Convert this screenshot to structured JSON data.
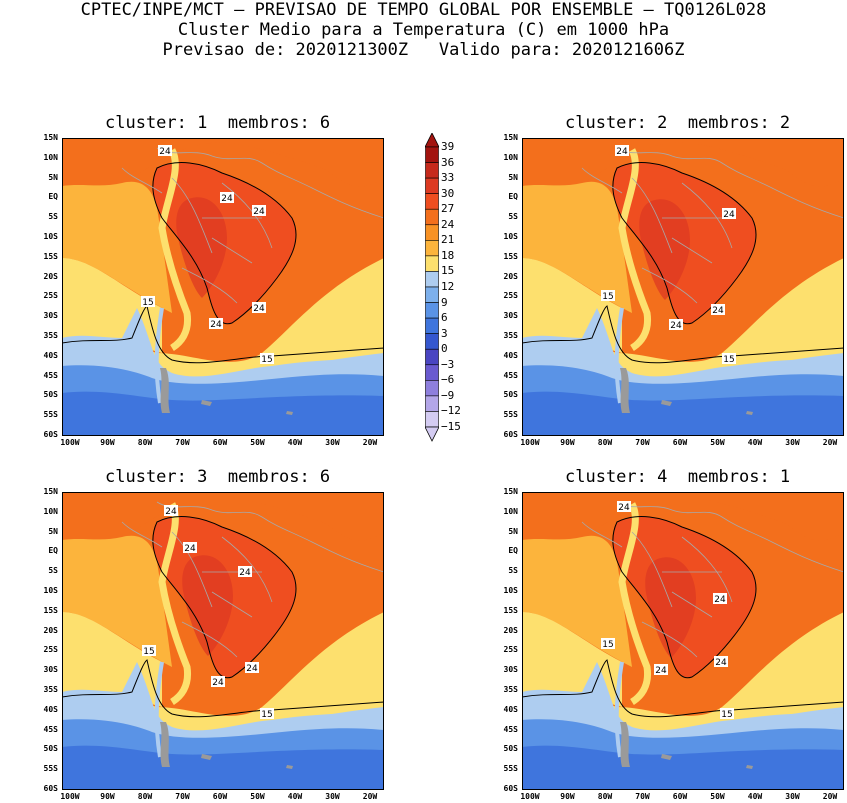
{
  "header": {
    "line1": "CPTEC/INPE/MCT — PREVISAO DE TEMPO GLOBAL POR ENSEMBLE — TQ0126L028",
    "line2": "Cluster Medio para a Temperatura (C) em 1000 hPa",
    "line3": "Previsao de: 2020121300Z   Valido para: 2020121606Z"
  },
  "panels": [
    {
      "title": "cluster: 1  membros: 6"
    },
    {
      "title": "cluster: 2  membros: 2"
    },
    {
      "title": "cluster: 3  membros: 6"
    },
    {
      "title": "cluster: 4  membros: 1"
    }
  ],
  "lat_labels": [
    "15N",
    "10N",
    "5N",
    "EQ",
    "5S",
    "10S",
    "15S",
    "20S",
    "25S",
    "30S",
    "35S",
    "40S",
    "45S",
    "50S",
    "55S",
    "60S"
  ],
  "lon_labels": [
    "100W",
    "90W",
    "80W",
    "70W",
    "60W",
    "50W",
    "40W",
    "30W",
    "20W"
  ],
  "contour_labels": {
    "c24": "24",
    "c15": "15"
  },
  "colorbar": {
    "levels": [
      "39",
      "36",
      "33",
      "30",
      "27",
      "24",
      "21",
      "18",
      "15",
      "12",
      "9",
      "6",
      "3",
      "0",
      "−3",
      "−6",
      "−9",
      "−12",
      "−15"
    ],
    "colors": [
      "#a3140f",
      "#c62a1c",
      "#dd3a22",
      "#ef4e20",
      "#f36f1c",
      "#f89224",
      "#fcb43c",
      "#fde06e",
      "#aecdf0",
      "#7db0ec",
      "#5a93e6",
      "#3f75dd",
      "#3557cf",
      "#4a45c2",
      "#6a5ad0",
      "#8e7fdd",
      "#b3a6e8",
      "#d4ccf2"
    ]
  },
  "colors": {
    "warm": "#f36f1c",
    "hot": "#ef4e20",
    "veryhot": "#dd3a22",
    "orange": "#f89224",
    "lightorange": "#fcb43c",
    "yellow": "#fde06e",
    "cold1": "#aecdf0",
    "cold2": "#5a93e6",
    "cold3": "#3f75dd",
    "land_border": "#a8a8a8"
  }
}
